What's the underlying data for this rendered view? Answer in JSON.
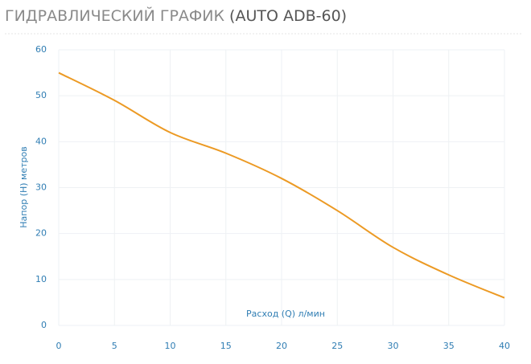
{
  "chart_data": {
    "type": "line",
    "title": "ГИДРАВЛИЧЕСКИЙ ГРАФИК",
    "title_model": "(AUTO ADB-60)",
    "x_label": "Расход (Q) л/мин",
    "y_label": "Напор (H) метров",
    "x": [
      0,
      5,
      10,
      15,
      20,
      25,
      30,
      35,
      40
    ],
    "series": [
      {
        "name": "AUTO ADB-60",
        "color": "#ec9a24",
        "values": [
          55,
          49,
          42,
          37.5,
          32,
          25,
          17,
          11,
          6
        ]
      }
    ],
    "xlim": [
      0,
      40
    ],
    "xticks": [
      0,
      5,
      10,
      15,
      20,
      25,
      30,
      35,
      40
    ],
    "ylim": [
      0,
      60
    ],
    "yticks": [
      0,
      10,
      20,
      30,
      40,
      50,
      60
    ],
    "grid": true
  }
}
